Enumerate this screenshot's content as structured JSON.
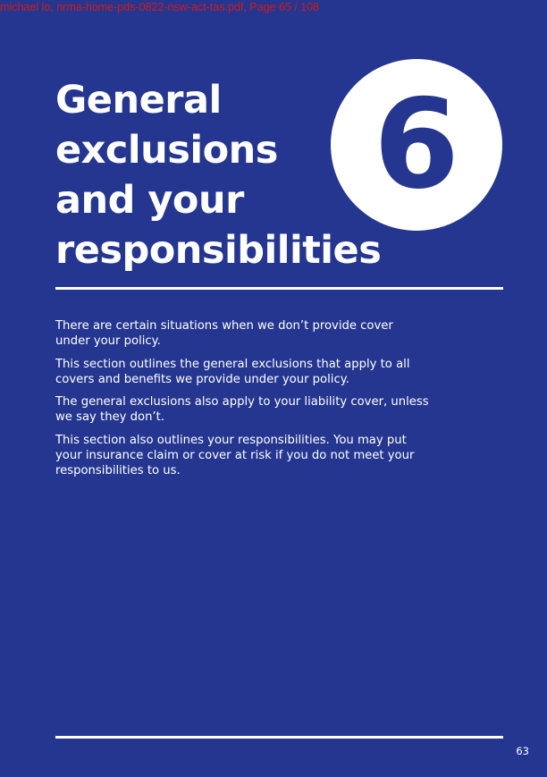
{
  "watermark": "michael lo, nrma-home-pds-0822-nsw-act-tas.pdf, Page 65 / 108",
  "section": {
    "number": "6",
    "title_lines": [
      "General",
      "exclusions",
      "and your",
      "responsibilities"
    ]
  },
  "intro_paragraphs": [
    "There are certain situations when we don’t provide cover under your policy.",
    "This section outlines the general exclusions that apply to all covers and benefits we provide under your policy.",
    "The general exclusions also apply to your liability cover, unless we say they don’t.",
    "This section also outlines your responsibilities. You may put your insurance claim or cover at risk if you do not meet your responsibilities to us."
  ],
  "page_number": "63",
  "colors": {
    "background": "#253690",
    "text": "#ffffff",
    "watermark": "#d11b1b"
  }
}
